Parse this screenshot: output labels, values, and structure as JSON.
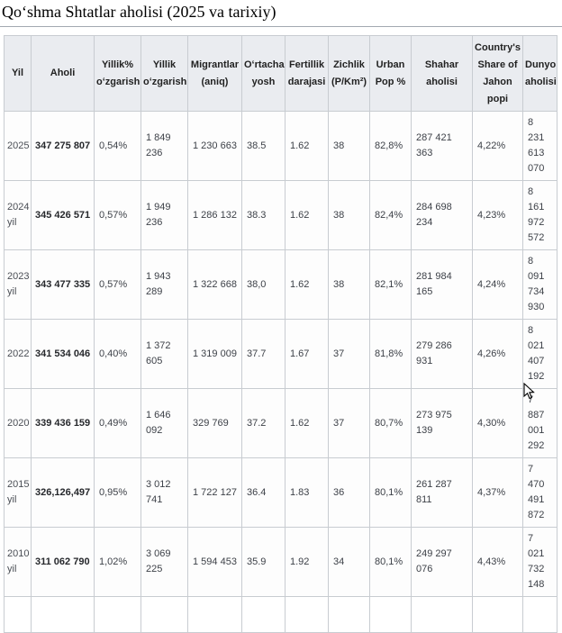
{
  "page": {
    "title": "Qoʻshma Shtatlar aholisi (2025 va tarixiy)"
  },
  "colors": {
    "header_background": "#eaecf0",
    "cell_border": "#c8ccd1",
    "title_rule": "#a2a9b1",
    "row_background": "#fdfdfd"
  },
  "table": {
    "columns": [
      "Yil",
      "Aholi",
      "Yillik% oʻzgarish",
      "Yillik oʻzgarish",
      "Migrantlar (aniq)",
      "Oʻrtacha yosh",
      "Fertillik darajasi",
      "Zichlik (P/Km²)",
      "Urban Pop %",
      "Shahar aholisi",
      "Country's Share of Jahon popi",
      "Dunyo aholisi"
    ],
    "rows": [
      [
        "2025",
        "347 275 807",
        "0,54%",
        "1 849 236",
        "1 230 663",
        "38.5",
        "1.62",
        "38",
        "82,8%",
        "287 421 363",
        "4,22%",
        "8 231 613 070"
      ],
      [
        "2024 yil",
        "345 426 571",
        "0,57%",
        "1 949 236",
        "1 286 132",
        "38.3",
        "1.62",
        "38",
        "82,4%",
        "284 698 234",
        "4,23%",
        "8 161 972 572"
      ],
      [
        "2023 yil",
        "343 477 335",
        "0,57%",
        "1 943 289",
        "1 322 668",
        "38,0",
        "1.62",
        "38",
        "82,1%",
        "281 984 165",
        "4,24%",
        "8 091 734 930"
      ],
      [
        "2022",
        "341 534 046",
        "0,40%",
        "1 372 605",
        "1 319 009",
        "37.7",
        "1.67",
        "37",
        "81,8%",
        "279 286 931",
        "4,26%",
        "8 021 407 192"
      ],
      [
        "2020",
        "339 436 159",
        "0,49%",
        "1 646 092",
        "329 769",
        "37.2",
        "1.62",
        "37",
        "80,7%",
        "273 975 139",
        "4,30%",
        "7 887 001 292"
      ],
      [
        "2015 yil",
        "326,126,497",
        "0,95%",
        "3 012 741",
        "1 722 127",
        "36.4",
        "1.83",
        "36",
        "80,1%",
        "261 287 811",
        "4,37%",
        "7 470 491 872"
      ],
      [
        "2010 yil",
        "311 062 790",
        "1,02%",
        "3 069 225",
        "1 594 453",
        "35.9",
        "1.92",
        "34",
        "80,1%",
        "249 297 076",
        "4,43%",
        "7 021 732 148"
      ]
    ]
  }
}
